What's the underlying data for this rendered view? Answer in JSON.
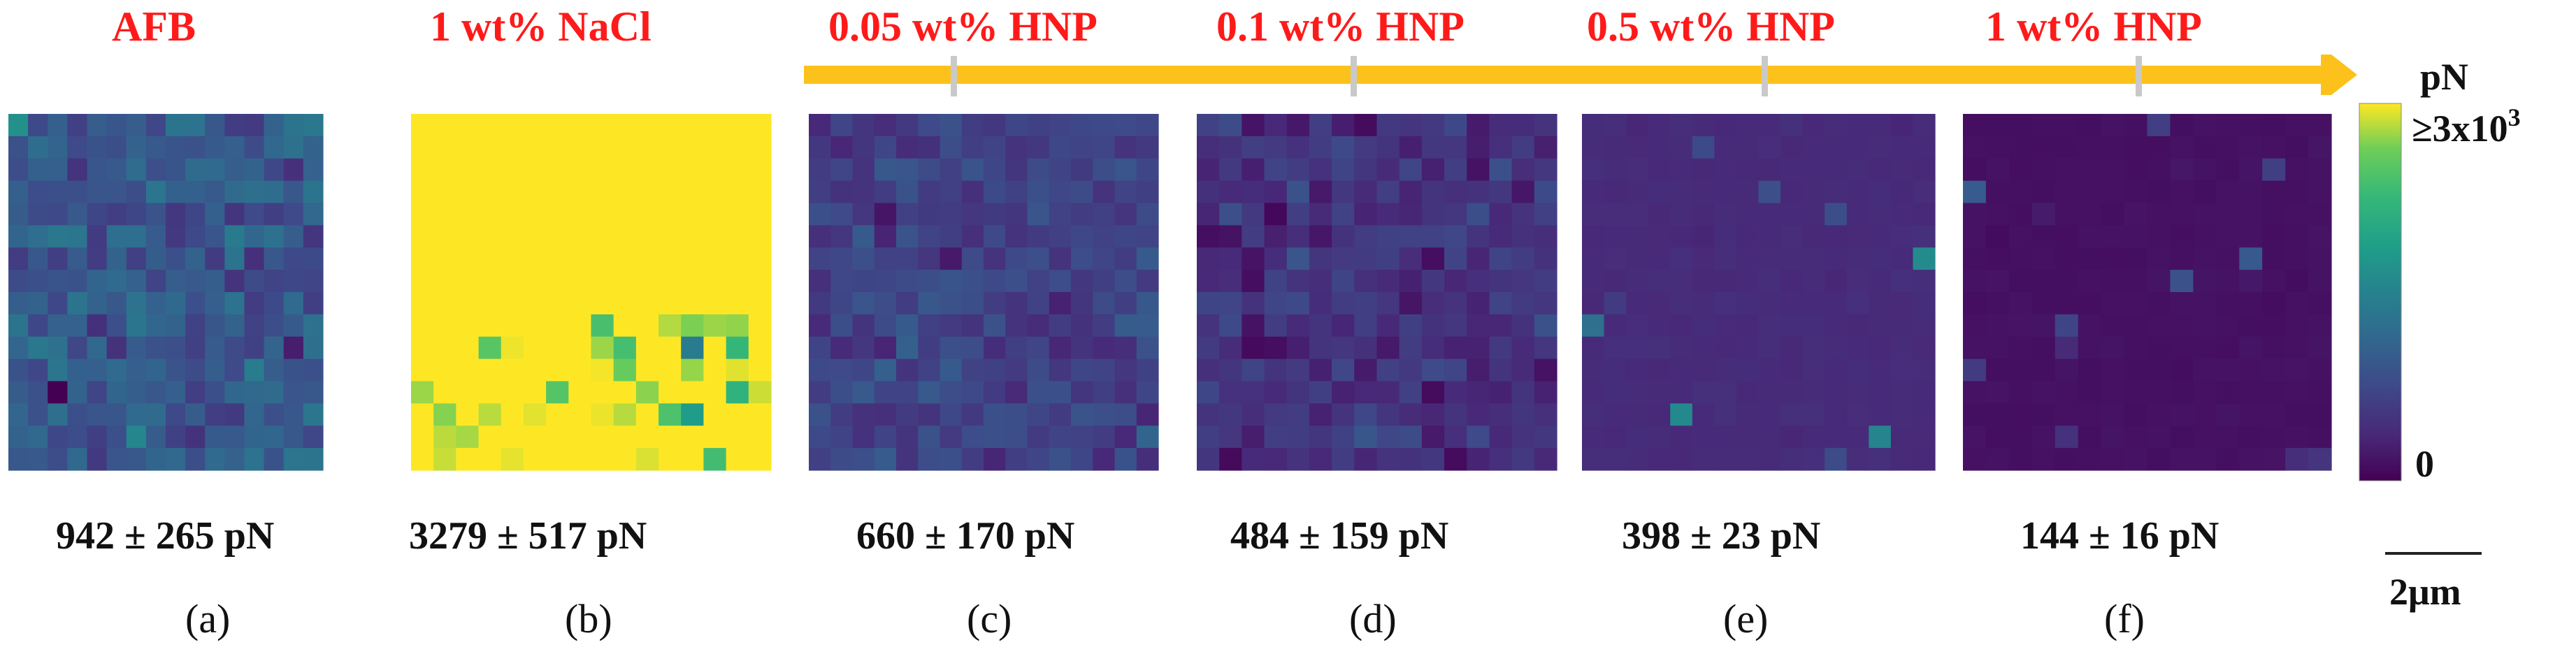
{
  "chart_data": {
    "type": "heatmap",
    "colormap": "viridis",
    "grid": "16x16",
    "colorbar": {
      "unit": "pN",
      "max_label": "≥3x10",
      "max_exp": "3",
      "min_label": "0",
      "range": [
        0,
        3000
      ]
    },
    "scale_bar": "2μm",
    "arrow_color": "#fcc21b",
    "panels": [
      {
        "title": "AFB",
        "value_label": "942 ± 265  pN",
        "letter": "(a)",
        "mean_pN": 942,
        "sd_pN": 265
      },
      {
        "title": "1 wt% NaCl",
        "value_label": "3279 ± 517  pN",
        "letter": "(b)",
        "mean_pN": 3279,
        "sd_pN": 517
      },
      {
        "title": "0.05 wt% HNP",
        "value_label": "660 ± 170 pN",
        "letter": "(c)",
        "mean_pN": 660,
        "sd_pN": 170
      },
      {
        "title": "0.1 wt% HNP",
        "value_label": "484 ± 159 pN",
        "letter": "(d)",
        "mean_pN": 484,
        "sd_pN": 159
      },
      {
        "title": "0.5 wt% HNP",
        "value_label": "398 ± 23 pN",
        "letter": "(e)",
        "mean_pN": 398,
        "sd_pN": 23
      },
      {
        "title": "1 wt% HNP",
        "value_label": "144 ± 16 pN",
        "letter": "(f)",
        "mean_pN": 144,
        "sd_pN": 16
      }
    ]
  }
}
